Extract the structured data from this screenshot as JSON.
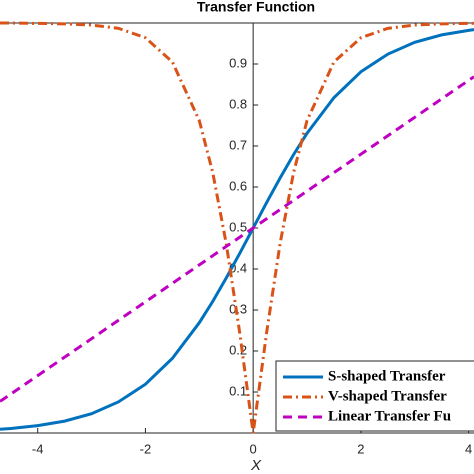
{
  "chart_data": {
    "type": "line",
    "title": "Transfer Function",
    "x_label": "X",
    "x": [
      -4.7,
      -4.5,
      -4,
      -3.5,
      -3,
      -2.5,
      -2,
      -1.5,
      -1,
      -0.75,
      -0.5,
      -0.25,
      0,
      0.25,
      0.5,
      0.75,
      1,
      1.5,
      2,
      2.5,
      3,
      3.5,
      4,
      4.1
    ],
    "series": [
      {
        "name": "S-shaped Transfer",
        "color": "#0072bd",
        "style": "solid",
        "values": [
          0.009,
          0.011,
          0.018,
          0.029,
          0.047,
          0.076,
          0.119,
          0.182,
          0.269,
          0.321,
          0.378,
          0.438,
          0.5,
          0.562,
          0.622,
          0.679,
          0.731,
          0.818,
          0.881,
          0.924,
          0.953,
          0.971,
          0.982,
          0.984
        ]
      },
      {
        "name": "V-shaped Transfer",
        "color": "#d95319",
        "style": "dashdot",
        "values": [
          1,
          1,
          0.999,
          0.998,
          0.995,
          0.987,
          0.964,
          0.905,
          0.762,
          0.635,
          0.462,
          0.245,
          0,
          0.245,
          0.462,
          0.635,
          0.762,
          0.905,
          0.964,
          0.987,
          0.995,
          0.998,
          0.999,
          0.999
        ]
      },
      {
        "name": "Linear Transfer Fu",
        "color": "#c000c0",
        "style": "dashed",
        "values": [
          0.077,
          0.095,
          0.14,
          0.185,
          0.23,
          0.275,
          0.32,
          0.365,
          0.41,
          0.4325,
          0.455,
          0.4775,
          0.5,
          0.5225,
          0.545,
          0.5675,
          0.59,
          0.635,
          0.68,
          0.725,
          0.77,
          0.815,
          0.86,
          0.869
        ]
      }
    ],
    "xlim": [
      -4.7,
      4.1
    ],
    "ylim": [
      0,
      1
    ],
    "xticks": [
      -4,
      -2,
      0,
      2,
      4
    ],
    "yticks": [
      0.1,
      0.2,
      0.3,
      0.4,
      0.5,
      0.6,
      0.7,
      0.8,
      0.9
    ],
    "legend": "lower right"
  }
}
